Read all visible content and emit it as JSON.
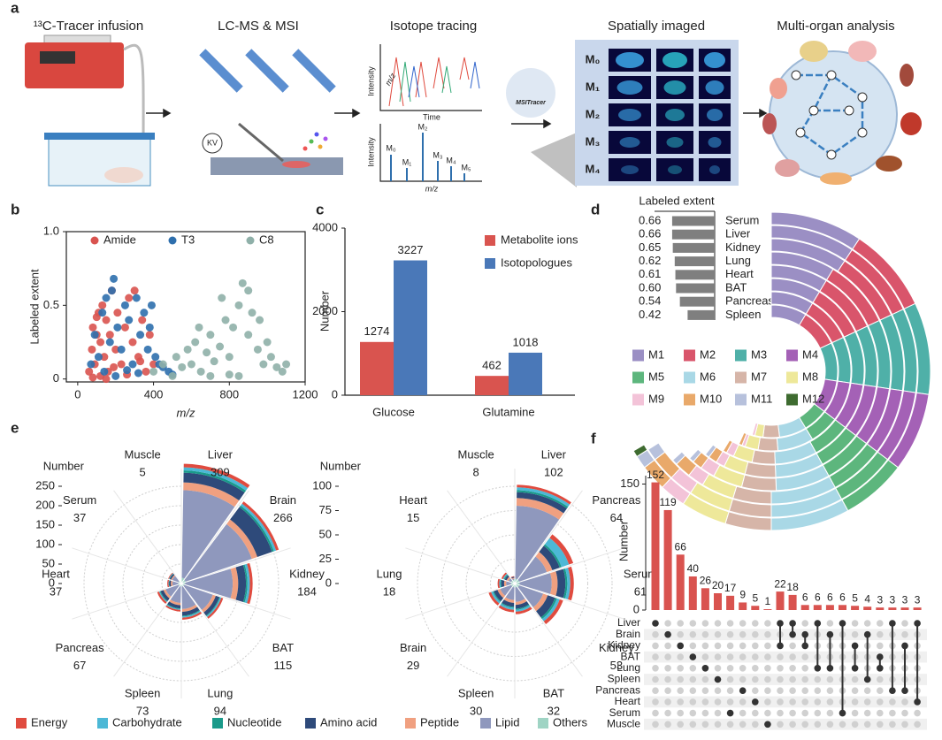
{
  "panels": [
    "a",
    "b",
    "c",
    "d",
    "e",
    "f"
  ],
  "workflow": {
    "steps": [
      "¹³C-Tracer infusion",
      "LC-MS & MSI",
      "Isotope tracing",
      "Spatially imaged",
      "Multi-organ analysis"
    ],
    "voltage": "KV",
    "tracing": {
      "y_label": "Intensity",
      "x_label": "m/z",
      "time_label": "Time",
      "spectrum_y_label": "Intensity",
      "spectrum_x_label": "m/z",
      "peaks": [
        "M₀",
        "M₁",
        "M₂",
        "M₃",
        "M₄",
        "M₅"
      ]
    },
    "msi": {
      "software": "MSITracer",
      "rows": [
        "M₀",
        "M₁",
        "M₂",
        "M₃",
        "M₄"
      ]
    }
  },
  "chart_data": [
    {
      "type": "scatter",
      "ylabel": "Labeled extent",
      "xlabel": "m/z",
      "xlim": [
        -60,
        1200
      ],
      "ylim": [
        -0.02,
        1
      ],
      "xticks": [
        0,
        400,
        800,
        1200
      ],
      "yticks": [
        0,
        0.5,
        {
          "value": 1,
          "label": "1.0"
        }
      ],
      "series": [
        {
          "name": "Amide",
          "color": "#d9534f",
          "x": [
            60,
            75,
            80,
            90,
            100,
            110,
            120,
            130,
            140,
            150,
            160,
            170,
            180,
            200,
            210,
            230,
            250,
            270,
            290,
            300,
            320,
            340,
            360,
            380,
            400,
            120,
            150,
            190,
            260,
            330,
            80,
            100
          ],
          "y": [
            0.05,
            0.2,
            0.35,
            0.1,
            0.3,
            0.45,
            0.25,
            0.5,
            0.15,
            0.4,
            0.05,
            0.3,
            0.6,
            0.2,
            0.45,
            0.1,
            0.35,
            0.55,
            0.25,
            0.6,
            0.15,
            0.4,
            0.05,
            0.3,
            0.1,
            0.02,
            0.0,
            0.08,
            0.03,
            0.12,
            0.01,
            0.42
          ]
        },
        {
          "name": "T3",
          "color": "#2e6fad",
          "x": [
            70,
            90,
            110,
            130,
            150,
            170,
            190,
            210,
            230,
            250,
            270,
            290,
            310,
            330,
            350,
            370,
            390,
            410,
            430,
            450,
            480,
            500,
            140,
            200,
            260,
            320,
            380,
            180
          ],
          "y": [
            0.1,
            0.3,
            0.15,
            0.45,
            0.55,
            0.25,
            0.68,
            0.35,
            0.2,
            0.5,
            0.4,
            0.1,
            0.55,
            0.3,
            0.45,
            0.2,
            0.5,
            0.15,
            0.1,
            0.08,
            0.05,
            0.03,
            0.05,
            0.02,
            0.06,
            0.04,
            0.35,
            0.6
          ]
        },
        {
          "name": "C8",
          "color": "#8fb0a9",
          "x": [
            400,
            450,
            500,
            520,
            550,
            580,
            600,
            620,
            650,
            680,
            700,
            720,
            750,
            780,
            800,
            820,
            850,
            870,
            900,
            920,
            950,
            980,
            1000,
            1020,
            1050,
            1080,
            1100,
            700,
            800,
            900,
            850,
            760,
            640,
            960
          ],
          "y": [
            0.05,
            0.1,
            0.02,
            0.15,
            0.08,
            0.2,
            0.1,
            0.25,
            0.05,
            0.18,
            0.3,
            0.12,
            0.22,
            0.4,
            0.15,
            0.35,
            0.5,
            0.65,
            0.3,
            0.45,
            0.2,
            0.1,
            0.25,
            0.15,
            0.08,
            0.05,
            0.1,
            0.02,
            0.03,
            0.6,
            0.02,
            0.55,
            0.35,
            0.4
          ]
        }
      ]
    },
    {
      "type": "bar",
      "ylabel": "Number",
      "categories": [
        "Glucose",
        "Glutamine"
      ],
      "ylim": [
        0,
        4000
      ],
      "yticks": [
        0,
        2000,
        4000
      ],
      "series": [
        {
          "name": "Metabolite ions",
          "color": "#d9544f",
          "values": [
            1274,
            462
          ]
        },
        {
          "name": "Isotopologues",
          "color": "#4a78b8",
          "values": [
            3227,
            1018
          ]
        }
      ]
    },
    {
      "type": "barh",
      "title": "Labeled extent",
      "color": "#7f7f7f",
      "xlim": [
        0,
        0.7
      ],
      "categories": [
        "Serum",
        "Liver",
        "Kidney",
        "Lung",
        "Heart",
        "BAT",
        "Pancreas",
        "Spleen"
      ],
      "values": [
        0.66,
        0.66,
        0.65,
        0.62,
        0.61,
        0.6,
        0.54,
        0.42
      ],
      "value_labels": [
        "0.66",
        "0.66",
        "0.65",
        "0.62",
        "0.61",
        "0.60",
        "0.54",
        "0.42"
      ]
    },
    {
      "type": "radial_stack",
      "categories": [
        "Serum",
        "Liver",
        "Kidney",
        "Lung",
        "Heart",
        "BAT",
        "Pancreas",
        "Spleen"
      ],
      "series": [
        {
          "name": "M1",
          "color": "#9b8fc4",
          "values": [
            14,
            14,
            14,
            13,
            13,
            13,
            13,
            13
          ]
        },
        {
          "name": "M2",
          "color": "#d9556b",
          "values": [
            13,
            13,
            13,
            14,
            14,
            14,
            14,
            14
          ]
        },
        {
          "name": "M3",
          "color": "#4fb0a8",
          "values": [
            14,
            14,
            14,
            14,
            14,
            14,
            14,
            14
          ]
        },
        {
          "name": "M4",
          "color": "#a461b6",
          "values": [
            12,
            12,
            12,
            12,
            12,
            12,
            12,
            12
          ]
        },
        {
          "name": "M5",
          "color": "#5db67d",
          "values": [
            10,
            10,
            10,
            10,
            10,
            10,
            9,
            9
          ]
        },
        {
          "name": "M6",
          "color": "#a9d8e6",
          "values": [
            12,
            12,
            12,
            11,
            11,
            11,
            11,
            10
          ]
        },
        {
          "name": "M7",
          "color": "#d6b5a8",
          "values": [
            7,
            7,
            7,
            7,
            7,
            6,
            6,
            6
          ]
        },
        {
          "name": "M8",
          "color": "#eee89a",
          "values": [
            7,
            7,
            6,
            6,
            5,
            5,
            4,
            3
          ]
        },
        {
          "name": "M9",
          "color": "#f3c3d8",
          "values": [
            4,
            4,
            3,
            3,
            2,
            2,
            1,
            1
          ]
        },
        {
          "name": "M10",
          "color": "#e9a96a",
          "values": [
            4,
            4,
            3,
            2,
            2,
            1,
            1,
            0
          ]
        },
        {
          "name": "M11",
          "color": "#b7c1dc",
          "values": [
            2,
            2,
            1,
            1,
            1,
            0,
            0,
            0
          ]
        },
        {
          "name": "M12",
          "color": "#3e6b30",
          "values": [
            1,
            0,
            0,
            0,
            0,
            0,
            0,
            0
          ]
        }
      ]
    },
    {
      "type": "polar_stack",
      "ylabel": "Number",
      "ylim": [
        0,
        250
      ],
      "yticks": [
        0,
        50,
        100,
        150,
        200,
        250
      ],
      "categories": [
        "Liver",
        "Brain",
        "Kidney",
        "BAT",
        "Lung",
        "Spleen",
        "Pancreas",
        "Heart",
        "Serum",
        "Muscle"
      ],
      "values": [
        309,
        266,
        184,
        115,
        94,
        73,
        67,
        37,
        37,
        5
      ],
      "series": [
        {
          "name": "Energy",
          "color": "#e04b3f",
          "values": [
            10,
            8,
            8,
            6,
            6,
            5,
            6,
            4,
            3,
            0
          ]
        },
        {
          "name": "Carbohydrate",
          "color": "#4cb8d6",
          "values": [
            8,
            6,
            6,
            3,
            3,
            2,
            2,
            1,
            1,
            0
          ]
        },
        {
          "name": "Nucleotide",
          "color": "#1a9a8a",
          "values": [
            6,
            5,
            4,
            2,
            2,
            2,
            2,
            1,
            1,
            0
          ]
        },
        {
          "name": "Amino acid",
          "color": "#2e4a7a",
          "values": [
            25,
            40,
            20,
            10,
            10,
            8,
            8,
            4,
            4,
            1
          ]
        },
        {
          "name": "Peptide",
          "color": "#f0a080",
          "values": [
            20,
            15,
            14,
            8,
            7,
            6,
            6,
            4,
            3,
            0
          ]
        },
        {
          "name": "Lipid",
          "color": "#8f98bd",
          "values": [
            225,
            180,
            122,
            78,
            58,
            42,
            35,
            15,
            17,
            1
          ]
        },
        {
          "name": "Others",
          "color": "#9fd4c4",
          "values": [
            15,
            12,
            10,
            8,
            8,
            8,
            8,
            8,
            8,
            3
          ]
        }
      ]
    },
    {
      "type": "polar_stack",
      "ylabel": "Number",
      "ylim": [
        0,
        100
      ],
      "yticks": [
        0,
        25,
        50,
        75,
        100
      ],
      "categories": [
        "Liver",
        "Pancreas",
        "Serum",
        "Kidney",
        "BAT",
        "Spleen",
        "Brain",
        "Lung",
        "Heart",
        "Muscle"
      ],
      "values": [
        102,
        64,
        61,
        53,
        32,
        30,
        29,
        18,
        15,
        8
      ],
      "series": [
        {
          "name": "Energy",
          "color": "#e04b3f",
          "values": [
            3,
            5,
            4,
            4,
            3,
            3,
            3,
            2,
            2,
            1
          ]
        },
        {
          "name": "Carbohydrate",
          "color": "#4cb8d6",
          "values": [
            3,
            8,
            3,
            3,
            2,
            2,
            2,
            1,
            1,
            0
          ]
        },
        {
          "name": "Nucleotide",
          "color": "#1a9a8a",
          "values": [
            2,
            2,
            2,
            2,
            1,
            1,
            1,
            1,
            1,
            0
          ]
        },
        {
          "name": "Amino acid",
          "color": "#2e4a7a",
          "values": [
            6,
            8,
            8,
            8,
            4,
            4,
            4,
            3,
            2,
            1
          ]
        },
        {
          "name": "Peptide",
          "color": "#f0a080",
          "values": [
            8,
            6,
            6,
            5,
            3,
            3,
            3,
            2,
            2,
            1
          ]
        },
        {
          "name": "Lipid",
          "color": "#8f98bd",
          "values": [
            75,
            30,
            33,
            26,
            15,
            13,
            12,
            5,
            3,
            1
          ]
        },
        {
          "name": "Others",
          "color": "#9fd4c4",
          "values": [
            5,
            5,
            5,
            5,
            4,
            4,
            4,
            4,
            4,
            4
          ]
        }
      ]
    },
    {
      "type": "upset",
      "ylabel": "Number",
      "color": "#d9534f",
      "ylim": [
        0,
        160
      ],
      "yticks": [
        0,
        150
      ],
      "sets": [
        "Liver",
        "Brain",
        "Kidney",
        "BAT",
        "Lung",
        "Spleen",
        "Pancreas",
        "Heart",
        "Serum",
        "Muscle"
      ],
      "values": [
        152,
        119,
        66,
        40,
        26,
        20,
        17,
        9,
        5,
        1,
        22,
        18,
        6,
        6,
        6,
        6,
        5,
        4,
        3,
        3,
        3,
        3
      ],
      "intersections": [
        [
          "Liver"
        ],
        [
          "Brain"
        ],
        [
          "Kidney"
        ],
        [
          "BAT"
        ],
        [
          "Lung"
        ],
        [
          "Spleen"
        ],
        [
          "Serum"
        ],
        [
          "Pancreas"
        ],
        [
          "Heart"
        ],
        [
          "Muscle"
        ],
        [
          "Liver",
          "Kidney"
        ],
        [
          "Liver",
          "Brain"
        ],
        [
          "Brain",
          "Kidney"
        ],
        [
          "Liver",
          "Lung"
        ],
        [
          "Brain",
          "Lung"
        ],
        [
          "Liver",
          "Serum"
        ],
        [
          "Kidney",
          "Lung"
        ],
        [
          "Brain",
          "Spleen"
        ],
        [
          "BAT",
          "Lung"
        ],
        [
          "Liver",
          "Pancreas"
        ],
        [
          "Kidney",
          "Pancreas"
        ],
        [
          "Liver",
          "Heart"
        ]
      ]
    }
  ]
}
